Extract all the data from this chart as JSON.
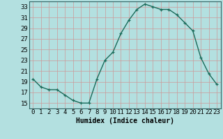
{
  "x": [
    0,
    1,
    2,
    3,
    4,
    5,
    6,
    7,
    8,
    9,
    10,
    11,
    12,
    13,
    14,
    15,
    16,
    17,
    18,
    19,
    20,
    21,
    22,
    23
  ],
  "y": [
    19.5,
    18.0,
    17.5,
    17.5,
    16.5,
    15.5,
    15.0,
    15.0,
    19.5,
    23.0,
    24.5,
    28.0,
    30.5,
    32.5,
    33.5,
    33.0,
    32.5,
    32.5,
    31.5,
    30.0,
    28.5,
    23.5,
    20.5,
    18.5
  ],
  "xlabel": "Humidex (Indice chaleur)",
  "xlim": [
    -0.5,
    23.5
  ],
  "ylim": [
    14,
    34
  ],
  "yticks": [
    15,
    17,
    19,
    21,
    23,
    25,
    27,
    29,
    31,
    33
  ],
  "xticks": [
    0,
    1,
    2,
    3,
    4,
    5,
    6,
    7,
    8,
    9,
    10,
    11,
    12,
    13,
    14,
    15,
    16,
    17,
    18,
    19,
    20,
    21,
    22,
    23
  ],
  "line_color": "#1a6b5a",
  "marker": "+",
  "bg_color": "#b3e0e0",
  "grid_color": "#cc9999",
  "axis_bg": "#b3e0e0",
  "font_color": "#000000",
  "xlabel_fontsize": 7,
  "tick_fontsize": 6.5,
  "linewidth": 1.0
}
